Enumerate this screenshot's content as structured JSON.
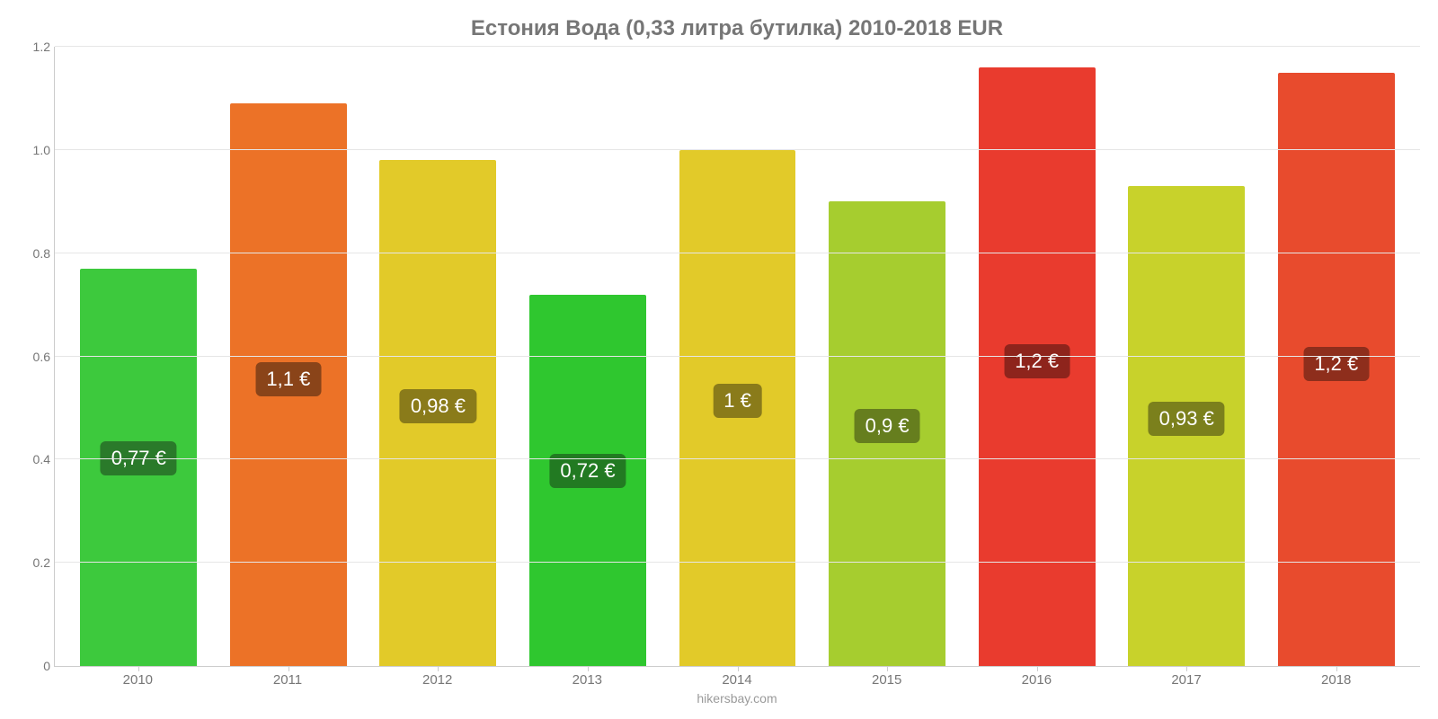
{
  "chart": {
    "type": "bar",
    "title": "Естония Вода (0,33 литра бутилка) 2010-2018 EUR",
    "title_fontsize": 24,
    "title_color": "#767676",
    "background_color": "#ffffff",
    "grid_color": "#e6e6e6",
    "axis_color": "#cccccc",
    "label_color": "#767676",
    "label_fontsize": 14,
    "ylim": [
      0,
      1.2
    ],
    "yticks": [
      0,
      0.2,
      0.4,
      0.6,
      0.8,
      1.0,
      1.2
    ],
    "ytick_labels": [
      "0",
      "0.2",
      "0.4",
      "0.6",
      "0.8",
      "1.0",
      "1.2"
    ],
    "bar_width": 0.78,
    "categories": [
      "2010",
      "2011",
      "2012",
      "2013",
      "2014",
      "2015",
      "2016",
      "2017",
      "2018"
    ],
    "values": [
      0.77,
      1.09,
      0.98,
      0.72,
      1.0,
      0.9,
      1.16,
      0.93,
      1.15
    ],
    "value_labels": [
      "0,77 €",
      "1,1 €",
      "0,98 €",
      "0,72 €",
      "1 €",
      "0,9 €",
      "1,2 €",
      "0,93 €",
      "1,2 €"
    ],
    "bar_colors": [
      "#3dc93d",
      "#ec7227",
      "#e2ca29",
      "#2fc72f",
      "#e2ca29",
      "#a6cd2f",
      "#e93b2e",
      "#c8d22b",
      "#e84b2d"
    ],
    "badge_colors": [
      "#2a7a2a",
      "#8a4419",
      "#8a7b1a",
      "#227a22",
      "#8a7b1a",
      "#667e1e",
      "#8e241c",
      "#7b801c",
      "#8e2e1c"
    ],
    "badge_text_color": "#ffffff",
    "badge_fontsize": 22,
    "source": "hikersbay.com",
    "source_color": "#9a9a9a"
  }
}
